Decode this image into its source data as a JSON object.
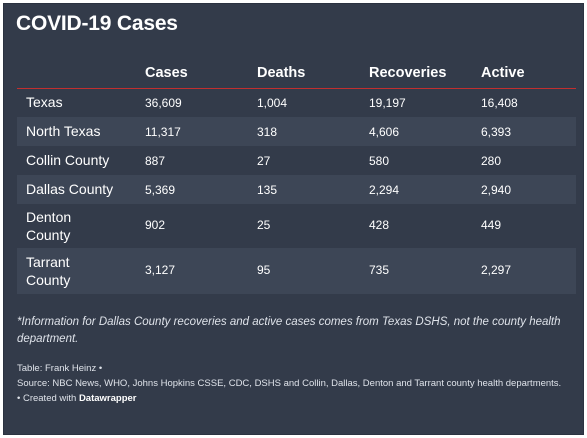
{
  "title": "COVID-19 Cases",
  "columns": [
    "Cases",
    "Deaths",
    "Recoveries",
    "Active"
  ],
  "rows": [
    {
      "name": "Texas",
      "cases": "36,609",
      "deaths": "1,004",
      "recoveries": "19,197",
      "active": "16,408"
    },
    {
      "name": "North Texas",
      "cases": "11,317",
      "deaths": "318",
      "recoveries": "4,606",
      "active": "6,393"
    },
    {
      "name": "Collin County",
      "cases": "887",
      "deaths": "27",
      "recoveries": "580",
      "active": "280"
    },
    {
      "name": "Dallas County",
      "cases": "5,369",
      "deaths": "135",
      "recoveries": "2,294",
      "active": "2,940"
    },
    {
      "name": "Denton County",
      "cases": "902",
      "deaths": "25",
      "recoveries": "428",
      "active": "449"
    },
    {
      "name": "Tarrant County",
      "cases": "3,127",
      "deaths": "95",
      "recoveries": "735",
      "active": "2,297"
    }
  ],
  "note": "*Information for Dallas County recoveries and active cases comes from Texas DSHS, not the county health department.",
  "credit": "Table: Frank Heinz •",
  "source": "Source: NBC News, WHO, Johns Hopkins CSSE, CDC, DSHS and Collin, Dallas, Denton and Tarrant county health departments.",
  "created_prefix": "• Created with",
  "created_brand": "Datawrapper",
  "colors": {
    "background": "#333b4a",
    "row_shade": "#3d4656",
    "header_rule": "#c22f2f",
    "text": "#ffffff"
  }
}
